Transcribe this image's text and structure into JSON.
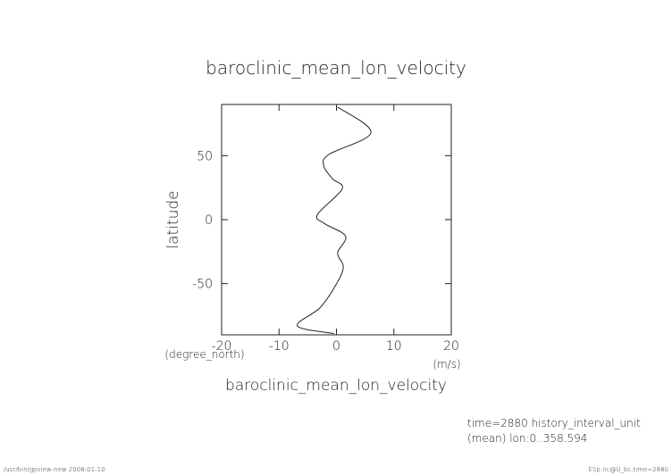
{
  "chart_data": {
    "type": "line",
    "orientation": "vertical",
    "title": "baroclinic_mean_lon_velocity",
    "xlabel": "baroclinic_mean_lon_velocity",
    "xunit": "(m/s)",
    "ylabel": "latitude",
    "yunit": "(degree_north)",
    "y": [
      88,
      68,
      51,
      42,
      32,
      24,
      4,
      -3,
      -13,
      -26,
      -37,
      -51,
      -69,
      -83,
      -89
    ],
    "values": [
      0.2,
      6,
      -1.3,
      -2.2,
      -0.7,
      1,
      -3.3,
      -2.1,
      1.6,
      0.2,
      1.2,
      -0.1,
      -2.9,
      -6.8,
      -0.4
    ],
    "color": "#222",
    "xlim": [
      -20,
      20
    ],
    "xticks": [
      -20,
      -10,
      0,
      10,
      20
    ],
    "ylim": [
      -90,
      90
    ],
    "yticks": [
      -50,
      0,
      50
    ],
    "notes": [
      "time=2880 history_interval_unit",
      "(mean) lon:0..358.594"
    ],
    "footer_left": "/usr/bin/gpview-new  2008-01-10",
    "footer_right": "ESp.nc@U_bc,time=2880"
  }
}
